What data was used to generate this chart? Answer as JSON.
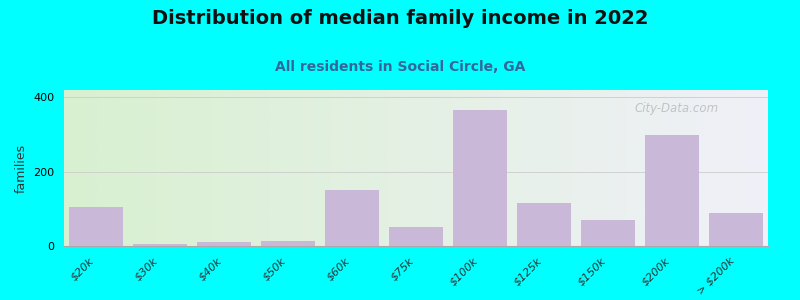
{
  "title": "Distribution of median family income in 2022",
  "subtitle": "All residents in Social Circle, GA",
  "categories": [
    "$20k",
    "$30k",
    "$40k",
    "$50k",
    "$60k",
    "$75k",
    "$100k",
    "$125k",
    "$150k",
    "$200k",
    "> $200k"
  ],
  "values": [
    105,
    5,
    12,
    13,
    150,
    50,
    365,
    115,
    70,
    300,
    90
  ],
  "bar_color": "#C9B8D8",
  "background_outer": "#00FFFF",
  "background_inner_left": "#d8f0d0",
  "background_inner_right": "#f0f0f8",
  "ylabel": "families",
  "yticks": [
    0,
    200,
    400
  ],
  "ylim": [
    0,
    420
  ],
  "watermark": "① City-Data.com",
  "title_fontsize": 14,
  "subtitle_fontsize": 10,
  "ylabel_fontsize": 9,
  "tick_fontsize": 8
}
